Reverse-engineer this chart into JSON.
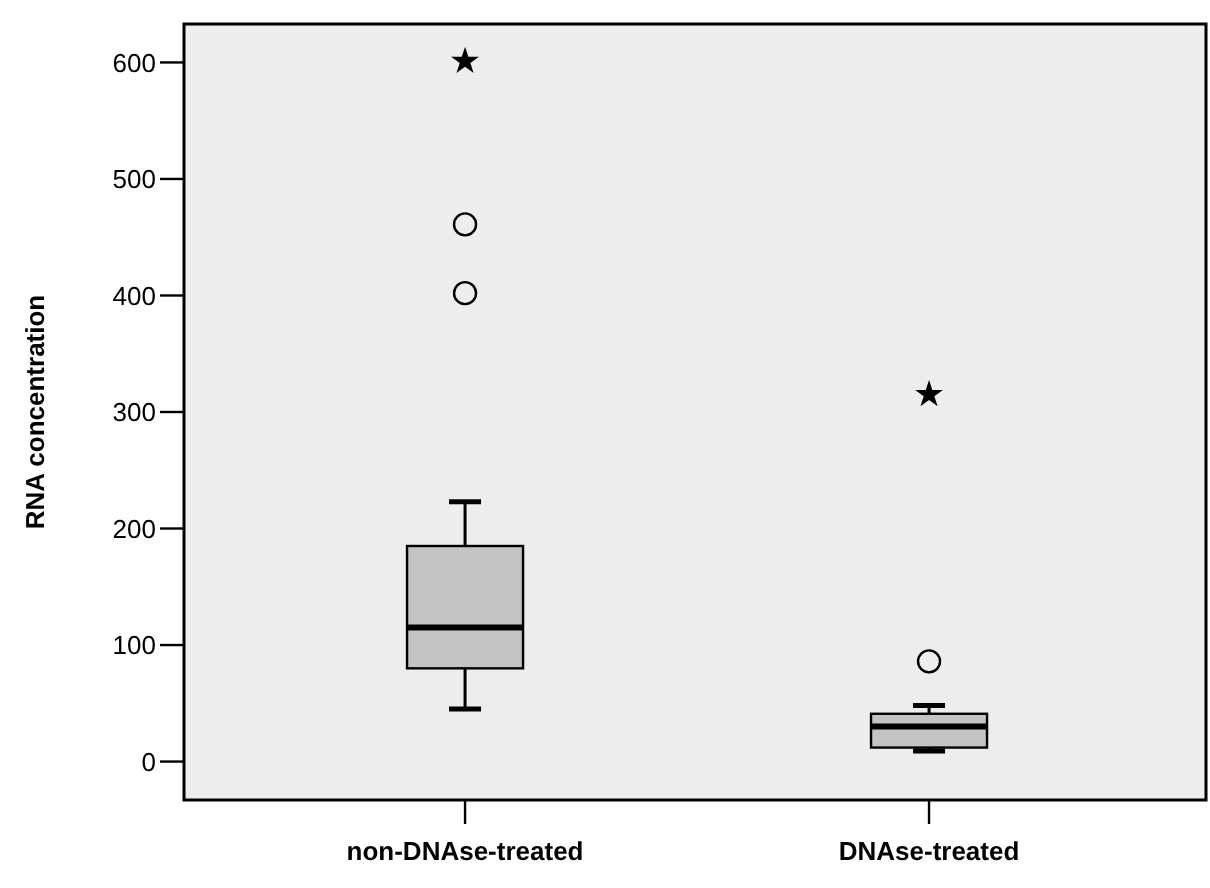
{
  "chart_data": {
    "type": "box",
    "ylabel": "RNA concentration",
    "categories": [
      "non-DNAse-treated",
      "DNAse-treated"
    ],
    "boxes": [
      {
        "low": 45,
        "q1": 80,
        "median": 115,
        "q3": 185,
        "high": 223,
        "outliers": [
          402,
          461,
          601
        ]
      },
      {
        "low": 9,
        "q1": 12,
        "median": 30,
        "q3": 41,
        "high": 48,
        "outliers": [
          86,
          315
        ]
      }
    ],
    "color": "#c4c4c4",
    "ylim": [
      -33,
      633
    ],
    "yticks": [
      0,
      100,
      200,
      300,
      400,
      500,
      600
    ],
    "grid": false
  }
}
